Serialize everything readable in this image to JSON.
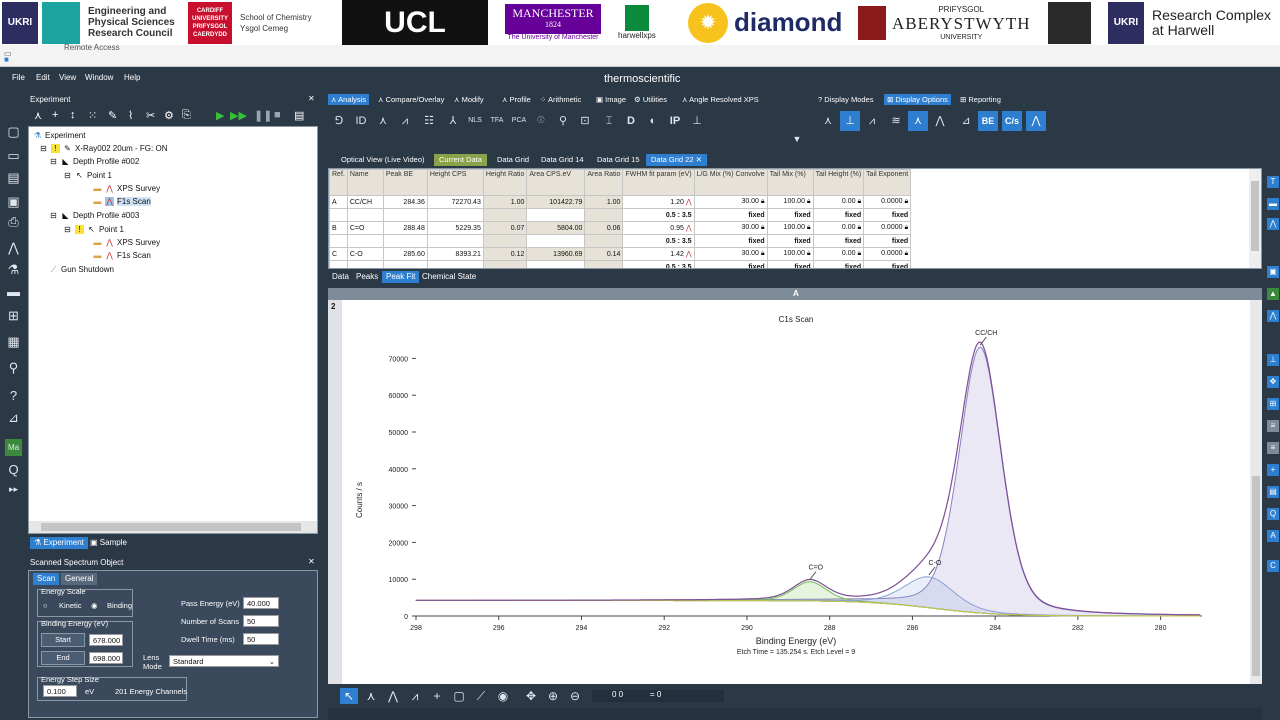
{
  "banner": {
    "ukri": "UKRI",
    "epsrc": [
      "Engineering and",
      "Physical Sciences",
      "Research Council"
    ],
    "cardiff": [
      "CARDIFF",
      "UNIVERSITY",
      "PRIFYSGOL",
      "CAERDYDD"
    ],
    "chemistry": [
      "School of Chemistry",
      "Ysgol Cemeg"
    ],
    "ucl": "UCL",
    "manchester": "MANCHESTER",
    "manchester_year": "1824",
    "manchester_sub": "The University of Manchester",
    "harwell": "harwellxps",
    "diamond": "diamond",
    "aber_top": "PRIFYSGOL",
    "aber": "ABERYSTWYTH",
    "aber_sub": "UNIVERSITY",
    "rc": [
      "Research Complex",
      "at Harwell"
    ]
  },
  "remote": {
    "label": "Remote Access"
  },
  "menubar": {
    "items": [
      "File",
      "Edit",
      "View",
      "Window",
      "Help"
    ],
    "brand": "thermoscientific"
  },
  "experiment": {
    "title": "Experiment",
    "tree": [
      "Experiment",
      "X-Ray002 20um - FG: ON",
      "Depth Profile #002",
      "Point 1",
      "XPS Survey",
      "F1s Scan",
      "Depth Profile #003",
      "Point 1",
      "XPS Survey",
      "F1s Scan",
      "Gun Shutdown"
    ],
    "tabs": [
      "Experiment",
      "Sample"
    ]
  },
  "sso": {
    "title": "Scanned Spectrum Object",
    "tabs": [
      "Scan",
      "General"
    ],
    "energy_scale": "Energy Scale",
    "kinetic": "Kinetic",
    "binding": "Binding",
    "binding_energy": "Binding Energy (eV)",
    "start": "Start",
    "start_val": "678.000",
    "end": "End",
    "end_val": "698.000",
    "pass_energy": "Pass Energy (eV)",
    "pass_energy_val": "40.000",
    "num_scans": "Number of Scans",
    "num_scans_val": "50",
    "dwell": "Dwell Time  (ms)",
    "dwell_val": "50",
    "lens_mode": "Lens Mode",
    "lens_mode_val": "Standard",
    "step": "Energy Step Size",
    "step_val": "0.100",
    "ev": "eV",
    "channels": "201 Energy Channels"
  },
  "analysis": {
    "tabs": [
      "Analysis",
      "Compare/Overlay",
      "Modify",
      "Profile",
      "Arithmetic",
      "Image",
      "Utilities",
      "Angle Resolved XPS"
    ],
    "display_tabs": [
      "Display Modes",
      "Display Options",
      "Reporting"
    ],
    "icon_names": [
      "peak-fit",
      "id",
      "survey",
      "chart",
      "stack",
      "nls",
      "tfa",
      "pca",
      "id",
      "search",
      "quant",
      "scan",
      "D",
      "drop",
      "IP",
      "marker"
    ],
    "display_labels": [
      "BE",
      "C/s"
    ]
  },
  "data_tabs": [
    "Optical View (Live Video)",
    "Current Data",
    "Data Grid",
    "Data Grid 14",
    "Data Grid 15",
    "Data Grid 22"
  ],
  "grid": {
    "headers": [
      "Ref.",
      "Name",
      "Peak BE",
      "Height CPS",
      "Height Ratio",
      "Area CPS.eV",
      "Area Ratio",
      "FWHM fit param (eV)",
      "L/G Mix (%) Convolve",
      "Tail Mix (%)",
      "Tail Height (%)",
      "Tail Exponent"
    ],
    "rows": [
      {
        "ref": "A",
        "name": "CC/CH",
        "be": "284.36",
        "height": "72270.43",
        "hratio": "1.00",
        "area": "101422.79",
        "aratio": "1.00",
        "fwhm": "1.20",
        "lg": "30.00",
        "tmix": "100.00",
        "theight": "0.00",
        "texp": "0.0000"
      },
      {
        "ref": "B",
        "name": "C=O",
        "be": "288.48",
        "height": "5229.35",
        "hratio": "0.07",
        "area": "5804.00",
        "aratio": "0.06",
        "fwhm": "0.95",
        "lg": "30.00",
        "tmix": "100.00",
        "theight": "0.00",
        "texp": "0.0000"
      },
      {
        "ref": "C",
        "name": "C-O",
        "be": "285.60",
        "height": "8393.21",
        "hratio": "0.12",
        "area": "13960.69",
        "aratio": "0.14",
        "fwhm": "1.42",
        "lg": "30.00",
        "tmix": "100.00",
        "theight": "0.00",
        "texp": "0.0000"
      }
    ],
    "constraint_range": "0.5 : 3.5",
    "fixed": "fixed",
    "tabs": [
      "Data",
      "Peaks",
      "Peak Fit",
      "Chemical State"
    ]
  },
  "plot_panel": {
    "header": "A",
    "side_index": "2"
  },
  "bottom": {
    "counter_a": "0  0",
    "counter_b": "= 0"
  },
  "chart_data": {
    "type": "line",
    "title": "C1s Scan",
    "xlabel": "Binding Energy (eV)",
    "ylabel": "Counts / s",
    "subtitle": "Etch Time = 135.254 s. Etch Level = 9",
    "xlim": [
      298,
      279
    ],
    "ylim": [
      0,
      75000
    ],
    "xticks": [
      298,
      296,
      294,
      292,
      290,
      288,
      286,
      284,
      282,
      280
    ],
    "yticks": [
      0,
      10000,
      20000,
      30000,
      40000,
      50000,
      60000,
      70000
    ],
    "x_reversed": true,
    "peaks": [
      {
        "name": "CC/CH",
        "center": 284.36,
        "height": 72270,
        "fwhm": 1.2,
        "color": "#8a7fc0"
      },
      {
        "name": "C=O",
        "center": 288.48,
        "height": 5229,
        "fwhm": 0.95,
        "color": "#6fbf4f"
      },
      {
        "name": "C-O",
        "center": 285.6,
        "height": 8393,
        "fwhm": 1.42,
        "color": "#8aa0d8"
      }
    ],
    "baseline": {
      "start": 4200,
      "end": 0
    },
    "series_colors": {
      "data": "#6a55b0",
      "envelope": "#c04040",
      "background": "#c8c83a"
    }
  }
}
